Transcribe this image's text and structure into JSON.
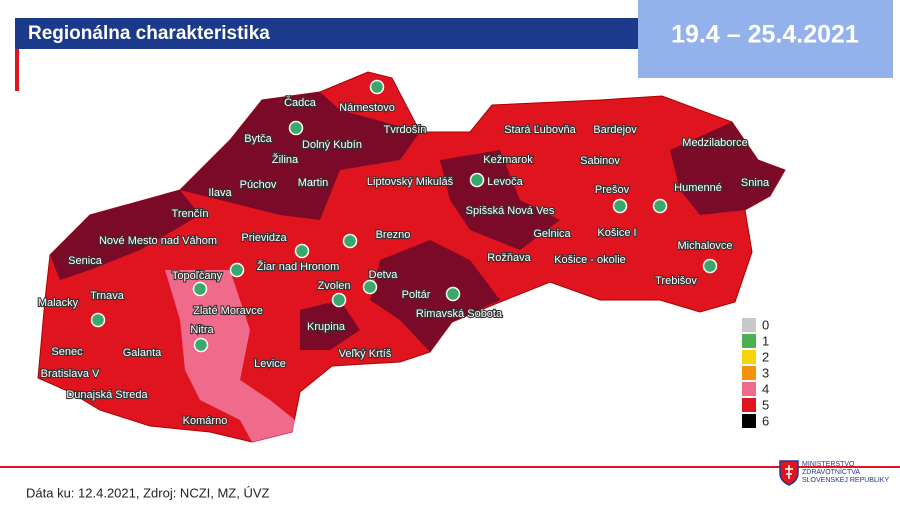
{
  "header": {
    "title": "Regionálna charakteristika",
    "date_range": "19.4 – 25.4.2021"
  },
  "map": {
    "districts": [
      "Čadca",
      "Námestovo",
      "Tvrdošín",
      "Bytča",
      "Dolný Kubín",
      "Žilina",
      "Púchov",
      "Martin",
      "Ilava",
      "Trenčín",
      "Nové Mesto nad Váhom",
      "Senica",
      "Prievidza",
      "Liptovský Mikuláš",
      "Kežmarok",
      "Levoča",
      "Stará Ľubovňa",
      "Bardejov",
      "Medzilaborce",
      "Sabinov",
      "Prešov",
      "Humenné",
      "Snina",
      "Spišská Nová Ves",
      "Gelnica",
      "Košice I",
      "Košice - okolie",
      "Michalovce",
      "Trebišov",
      "Rožňava",
      "Brezno",
      "Žiar nad Hronom",
      "Topoľčany",
      "Zlaté Moravce",
      "Zvolen",
      "Detva",
      "Poltár",
      "Rimavská Sobota",
      "Krupina",
      "Veľký Krtíš",
      "Levice",
      "Nitra",
      "Malacky",
      "Trnava",
      "Senec",
      "Galanta",
      "Bratislava V",
      "Dunajská Streda",
      "Komárno"
    ],
    "legend": [
      {
        "label": "0",
        "color": "#c8c8c8"
      },
      {
        "label": "1",
        "color": "#4caf50"
      },
      {
        "label": "2",
        "color": "#f5d50a"
      },
      {
        "label": "3",
        "color": "#f5920a"
      },
      {
        "label": "4",
        "color": "#f06a8c"
      },
      {
        "label": "5",
        "color": "#e0141e"
      },
      {
        "label": "6",
        "color": "#000000"
      }
    ]
  },
  "footer": {
    "source": "Dáta ku: 12.4.2021, Zdroj: NCZI, MZ, ÚVZ",
    "logo": [
      "MINISTERSTVO",
      "ZDRAVOTNÍCTVA",
      "SLOVENSKEJ REPUBLIKY"
    ]
  }
}
